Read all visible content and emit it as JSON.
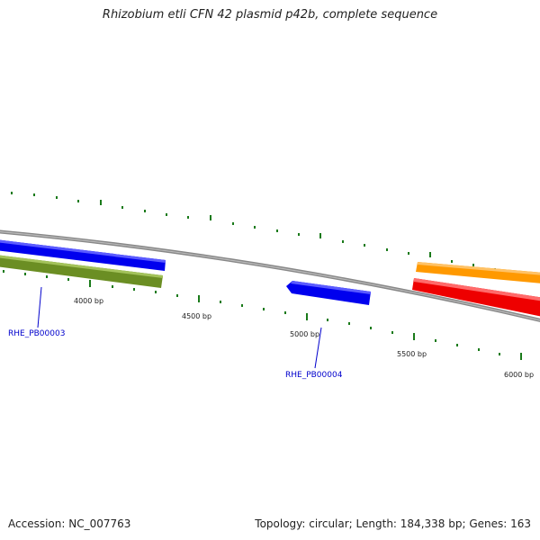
{
  "title": "Rhizobium etli CFN 42 plasmid p42b, complete sequence",
  "footer": {
    "accession": "Accession: NC_007763",
    "summary": "Topology: circular; Length: 184,338 bp; Genes: 163"
  },
  "scale_labels": [
    "4000 bp",
    "4500 bp",
    "5000 bp",
    "5500 bp",
    "6000 bp"
  ],
  "gene_labels": [
    "RHE_PB00003",
    "RHE_PB00004"
  ],
  "colors": {
    "backbone": "#888888",
    "tick": "#1a7a1a",
    "gene_blue": "#0000ee",
    "gene_olive": "#6b8e23",
    "gene_orange": "#ff9900",
    "gene_red": "#ee0000",
    "label_line": "#0000cc"
  }
}
